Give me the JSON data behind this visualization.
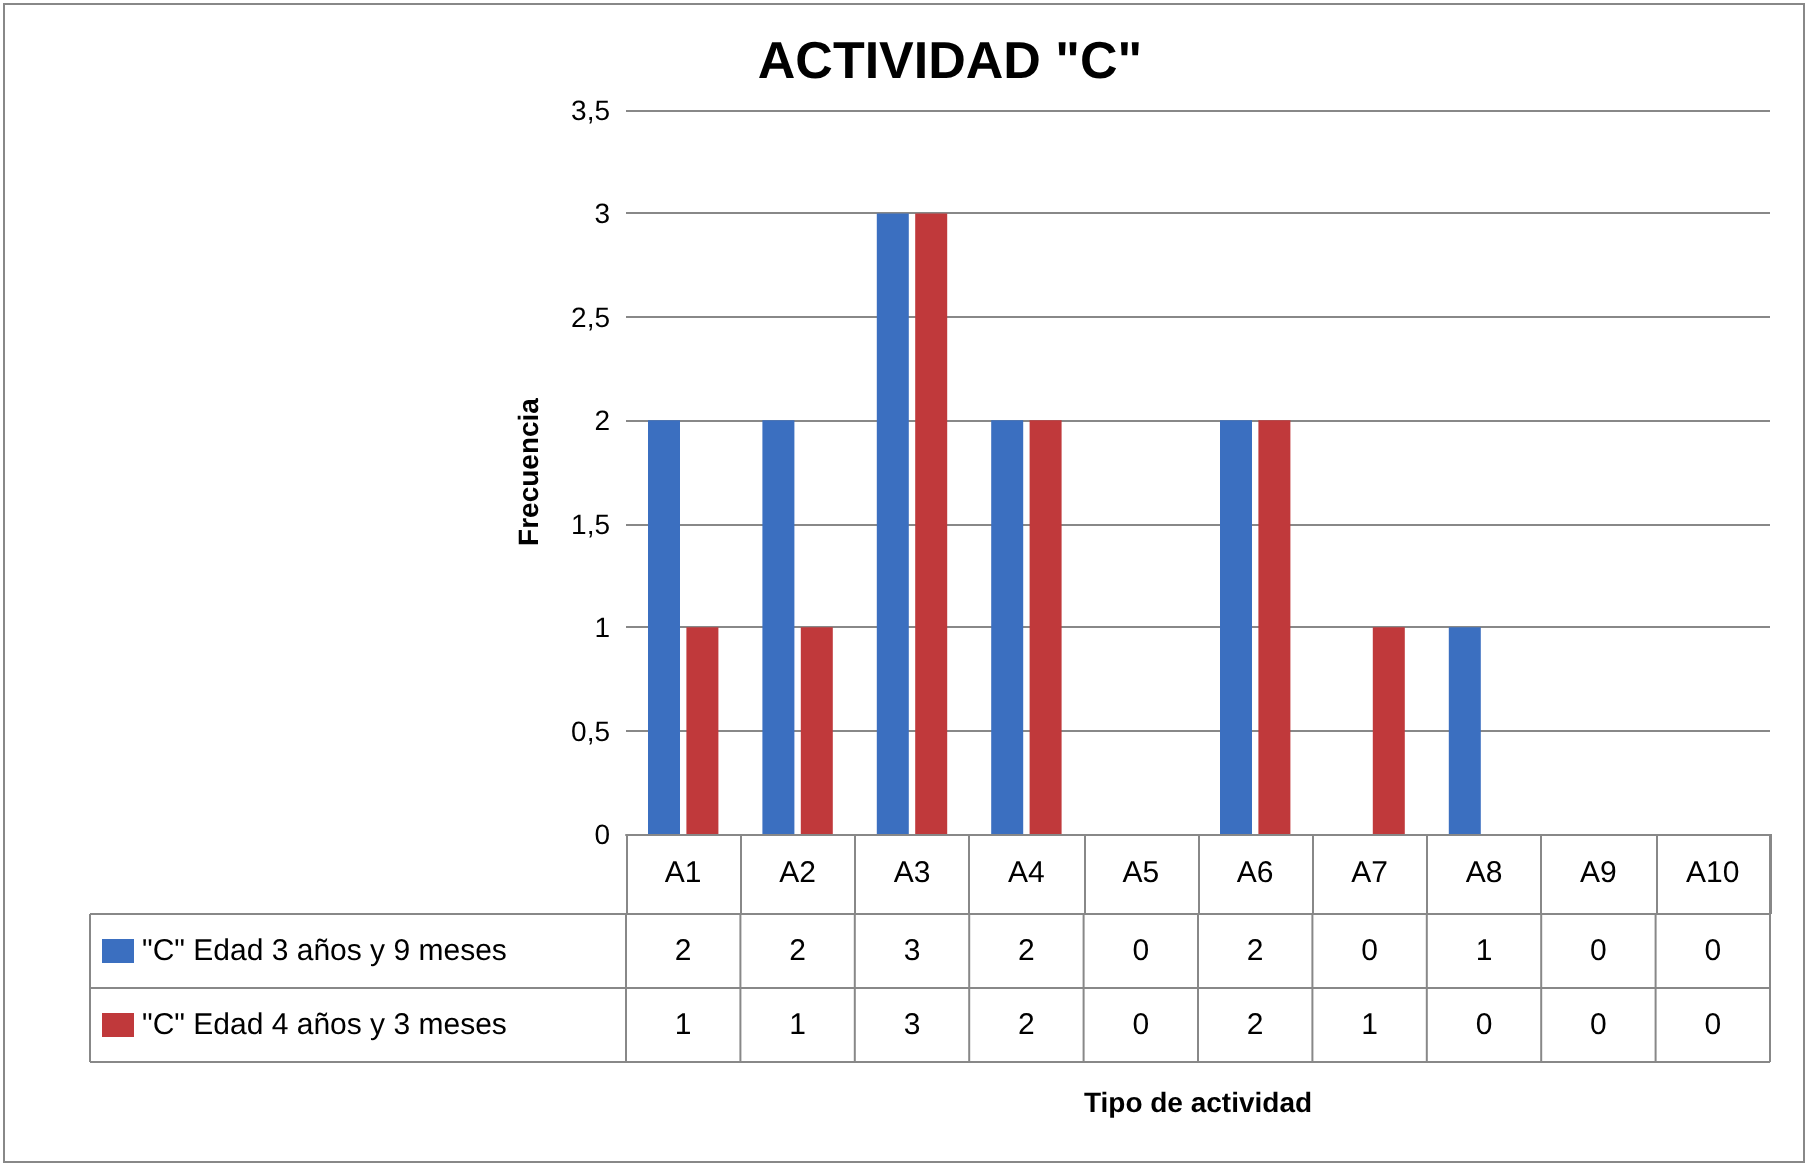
{
  "chart_data": {
    "type": "bar",
    "title": "ACTIVIDAD \"C\"",
    "annotations": [
      "Tipo de actividad"
    ],
    "ylabel": "Frecuencia",
    "categories": [
      "A1",
      "A2",
      "A3",
      "A4",
      "A5",
      "A6",
      "A7",
      "A8",
      "A9",
      "A10"
    ],
    "series": [
      {
        "name": "\"C\" Edad 3 años y 9 meses",
        "color": "#3b6fc0",
        "values": [
          2,
          2,
          3,
          2,
          0,
          2,
          0,
          1,
          0,
          0
        ]
      },
      {
        "name": "\"C\" Edad 4 años y 3 meses",
        "color": "#c0393b",
        "values": [
          1,
          1,
          3,
          2,
          0,
          2,
          1,
          0,
          0,
          0
        ]
      }
    ],
    "ylim": [
      0,
      3.5
    ],
    "yticks": [
      0,
      {
        "value": 0.5,
        "label": "0,5"
      },
      1,
      {
        "value": 1.5,
        "label": "1,5"
      },
      2,
      {
        "value": 2.5,
        "label": "2,5"
      },
      3,
      {
        "value": 3.5,
        "label": "3,5"
      }
    ],
    "grid": "y",
    "legend": "bottom",
    "data_labels": true
  }
}
